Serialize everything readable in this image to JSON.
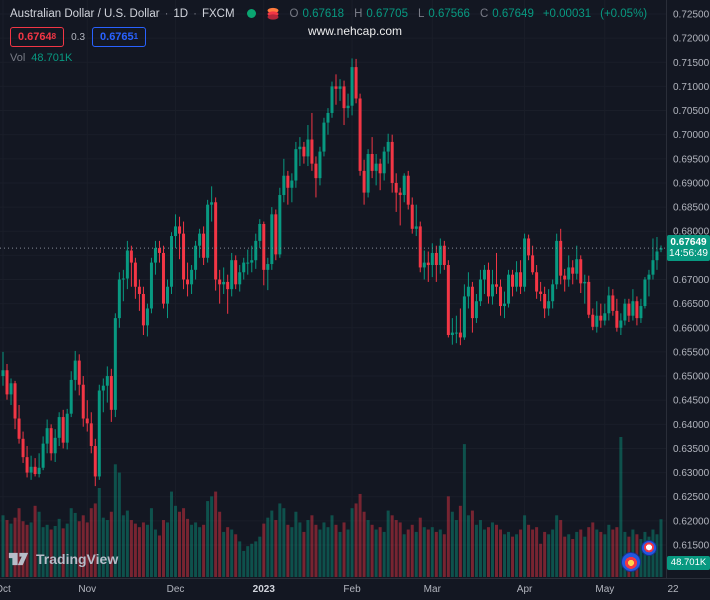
{
  "header": {
    "symbol_title": "Australian Dollar / U.S. Dollar",
    "separator": "·",
    "interval": "1D",
    "exchange": "FXCM",
    "ohlc": {
      "o_label": "O",
      "o": "0.67618",
      "h_label": "H",
      "h": "0.67705",
      "l_label": "L",
      "l": "0.67566",
      "c_label": "C",
      "c": "0.67649",
      "change": "+0.00031",
      "change_pct": "(+0.05%)"
    },
    "sell_price": "0.6764",
    "sell_sup": "8",
    "spread": "0.3",
    "buy_price": "0.6765",
    "buy_sup": "1",
    "vol_label": "Vol",
    "vol_value": "48.701K"
  },
  "watermark": "www.nehcap.com",
  "footer_logo": "TradingView",
  "price_label": {
    "price": "0.67649",
    "countdown": "14:56:49"
  },
  "volume_axis_label": "48.701K",
  "colors": {
    "bg": "#131722",
    "up": "#089981",
    "down": "#f23645",
    "vol_up": "rgba(8,153,129,0.45)",
    "vol_down": "rgba(242,54,69,0.45)",
    "sell": "#f23645",
    "buy": "#2962ff",
    "axis_text": "#b2b5be",
    "muted": "#787b86",
    "label_text": "#d1d4dc",
    "grid": "#1a1e29",
    "price_line": "#868b97",
    "flag_bg": "#089981"
  },
  "chart_data": {
    "type": "candlestick",
    "title": "Australian Dollar / U.S. Dollar",
    "symbol": "AUD/USD",
    "interval": "1D",
    "exchange": "FXCM",
    "last_price": 0.67649,
    "y_axis": {
      "min": 0.615,
      "max": 0.725,
      "tick_step": 0.005,
      "tick_decimals": 5
    },
    "x_axis_labels": [
      {
        "label": "Oct",
        "index": 0
      },
      {
        "label": "Nov",
        "index": 21
      },
      {
        "label": "Dec",
        "index": 43
      },
      {
        "label": "2023",
        "index": 65,
        "emphasis": true
      },
      {
        "label": "Feb",
        "index": 87
      },
      {
        "label": "Mar",
        "index": 107
      },
      {
        "label": "Apr",
        "index": 130
      },
      {
        "label": "May",
        "index": 150
      },
      {
        "label": "22",
        "index": 167
      }
    ],
    "candle_fields": [
      "open",
      "high",
      "low",
      "close",
      "volume_k"
    ],
    "candles": [
      [
        0.65,
        0.655,
        0.648,
        0.6512,
        52
      ],
      [
        0.6512,
        0.6525,
        0.6451,
        0.6462,
        48
      ],
      [
        0.6462,
        0.6495,
        0.644,
        0.6485,
        45
      ],
      [
        0.6485,
        0.649,
        0.639,
        0.6412,
        50
      ],
      [
        0.6412,
        0.644,
        0.636,
        0.637,
        58
      ],
      [
        0.637,
        0.6385,
        0.632,
        0.6332,
        47
      ],
      [
        0.6332,
        0.6355,
        0.629,
        0.63,
        44
      ],
      [
        0.63,
        0.6335,
        0.6285,
        0.6312,
        46
      ],
      [
        0.6312,
        0.633,
        0.6292,
        0.6297,
        60
      ],
      [
        0.6297,
        0.634,
        0.629,
        0.631,
        55
      ],
      [
        0.631,
        0.6375,
        0.6305,
        0.636,
        42
      ],
      [
        0.636,
        0.641,
        0.634,
        0.6392,
        44
      ],
      [
        0.6392,
        0.64,
        0.6325,
        0.634,
        40
      ],
      [
        0.634,
        0.639,
        0.6322,
        0.6372,
        43
      ],
      [
        0.6372,
        0.6425,
        0.6355,
        0.6415,
        49
      ],
      [
        0.6415,
        0.643,
        0.635,
        0.6362,
        41
      ],
      [
        0.6362,
        0.6432,
        0.6348,
        0.6422,
        45
      ],
      [
        0.6422,
        0.651,
        0.6415,
        0.6492,
        58
      ],
      [
        0.6492,
        0.6552,
        0.647,
        0.6532,
        54
      ],
      [
        0.6532,
        0.6545,
        0.646,
        0.6482,
        47
      ],
      [
        0.6482,
        0.65,
        0.6395,
        0.6412,
        52
      ],
      [
        0.6412,
        0.645,
        0.6385,
        0.6402,
        46
      ],
      [
        0.6402,
        0.6425,
        0.634,
        0.6355,
        58
      ],
      [
        0.6355,
        0.637,
        0.6272,
        0.6292,
        62
      ],
      [
        0.6292,
        0.6482,
        0.6285,
        0.647,
        75
      ],
      [
        0.647,
        0.6495,
        0.6425,
        0.648,
        50
      ],
      [
        0.648,
        0.652,
        0.6445,
        0.65,
        48
      ],
      [
        0.65,
        0.6515,
        0.6405,
        0.643,
        55
      ],
      [
        0.643,
        0.663,
        0.6415,
        0.662,
        95
      ],
      [
        0.662,
        0.6715,
        0.66,
        0.67,
        88
      ],
      [
        0.67,
        0.672,
        0.6655,
        0.6702,
        52
      ],
      [
        0.6702,
        0.678,
        0.668,
        0.676,
        56
      ],
      [
        0.676,
        0.677,
        0.6685,
        0.6735,
        48
      ],
      [
        0.6735,
        0.6745,
        0.666,
        0.6685,
        45
      ],
      [
        0.6685,
        0.67,
        0.6635,
        0.667,
        42
      ],
      [
        0.667,
        0.6685,
        0.6585,
        0.6605,
        46
      ],
      [
        0.6605,
        0.665,
        0.6582,
        0.664,
        44
      ],
      [
        0.664,
        0.6745,
        0.663,
        0.6735,
        58
      ],
      [
        0.6735,
        0.678,
        0.671,
        0.6765,
        40
      ],
      [
        0.6765,
        0.678,
        0.6735,
        0.6755,
        35
      ],
      [
        0.6755,
        0.677,
        0.664,
        0.665,
        48
      ],
      [
        0.665,
        0.67,
        0.662,
        0.6685,
        46
      ],
      [
        0.6685,
        0.6798,
        0.667,
        0.679,
        72
      ],
      [
        0.679,
        0.6835,
        0.6765,
        0.681,
        60
      ],
      [
        0.681,
        0.683,
        0.6742,
        0.6795,
        55
      ],
      [
        0.6795,
        0.682,
        0.668,
        0.67,
        58
      ],
      [
        0.67,
        0.6735,
        0.6665,
        0.669,
        49
      ],
      [
        0.669,
        0.673,
        0.667,
        0.672,
        44
      ],
      [
        0.672,
        0.678,
        0.67,
        0.677,
        46
      ],
      [
        0.677,
        0.6805,
        0.6745,
        0.6795,
        42
      ],
      [
        0.6795,
        0.681,
        0.673,
        0.6745,
        44
      ],
      [
        0.6745,
        0.6865,
        0.6735,
        0.6855,
        64
      ],
      [
        0.6855,
        0.6893,
        0.682,
        0.686,
        68
      ],
      [
        0.686,
        0.687,
        0.6677,
        0.67,
        72
      ],
      [
        0.67,
        0.672,
        0.665,
        0.669,
        55
      ],
      [
        0.669,
        0.6725,
        0.667,
        0.6695,
        38
      ],
      [
        0.6695,
        0.671,
        0.6629,
        0.668,
        42
      ],
      [
        0.668,
        0.6755,
        0.6665,
        0.674,
        40
      ],
      [
        0.674,
        0.675,
        0.668,
        0.669,
        36
      ],
      [
        0.669,
        0.673,
        0.6675,
        0.6715,
        30
      ],
      [
        0.6715,
        0.6745,
        0.67,
        0.6735,
        22
      ],
      [
        0.6735,
        0.6762,
        0.671,
        0.6735,
        26
      ],
      [
        0.6735,
        0.677,
        0.6715,
        0.674,
        28
      ],
      [
        0.674,
        0.6795,
        0.6722,
        0.678,
        30
      ],
      [
        0.678,
        0.6825,
        0.6765,
        0.6815,
        34
      ],
      [
        0.6815,
        0.682,
        0.6688,
        0.672,
        45
      ],
      [
        0.672,
        0.6745,
        0.6678,
        0.6732,
        50
      ],
      [
        0.6732,
        0.685,
        0.672,
        0.6835,
        56
      ],
      [
        0.6835,
        0.6845,
        0.674,
        0.6752,
        48
      ],
      [
        0.6752,
        0.689,
        0.6745,
        0.6875,
        62
      ],
      [
        0.6875,
        0.695,
        0.686,
        0.6915,
        58
      ],
      [
        0.6915,
        0.6925,
        0.6855,
        0.689,
        44
      ],
      [
        0.689,
        0.692,
        0.686,
        0.6905,
        42
      ],
      [
        0.6905,
        0.6985,
        0.689,
        0.697,
        55
      ],
      [
        0.697,
        0.6995,
        0.6935,
        0.6975,
        46
      ],
      [
        0.6975,
        0.6985,
        0.694,
        0.6955,
        38
      ],
      [
        0.6955,
        0.702,
        0.6935,
        0.699,
        48
      ],
      [
        0.699,
        0.7045,
        0.6925,
        0.694,
        52
      ],
      [
        0.694,
        0.6955,
        0.687,
        0.691,
        44
      ],
      [
        0.691,
        0.6975,
        0.6895,
        0.6965,
        40
      ],
      [
        0.6965,
        0.7035,
        0.6955,
        0.7025,
        46
      ],
      [
        0.7025,
        0.7055,
        0.7,
        0.7045,
        42
      ],
      [
        0.7045,
        0.711,
        0.7035,
        0.71,
        52
      ],
      [
        0.71,
        0.7125,
        0.7062,
        0.7095,
        44
      ],
      [
        0.7095,
        0.7115,
        0.707,
        0.71,
        38
      ],
      [
        0.71,
        0.7112,
        0.702,
        0.7055,
        46
      ],
      [
        0.7055,
        0.7085,
        0.7035,
        0.706,
        40
      ],
      [
        0.706,
        0.7158,
        0.704,
        0.714,
        58
      ],
      [
        0.714,
        0.7157,
        0.7065,
        0.7075,
        62
      ],
      [
        0.7075,
        0.7085,
        0.6915,
        0.6925,
        70
      ],
      [
        0.6925,
        0.6948,
        0.6855,
        0.688,
        55
      ],
      [
        0.688,
        0.697,
        0.687,
        0.696,
        48
      ],
      [
        0.696,
        0.6995,
        0.691,
        0.6925,
        44
      ],
      [
        0.6925,
        0.696,
        0.6895,
        0.694,
        40
      ],
      [
        0.694,
        0.695,
        0.6885,
        0.692,
        42
      ],
      [
        0.692,
        0.6975,
        0.6905,
        0.6965,
        38
      ],
      [
        0.6965,
        0.7002,
        0.694,
        0.6985,
        56
      ],
      [
        0.6985,
        0.7,
        0.688,
        0.69,
        52
      ],
      [
        0.69,
        0.692,
        0.684,
        0.688,
        48
      ],
      [
        0.688,
        0.689,
        0.6812,
        0.6875,
        46
      ],
      [
        0.6875,
        0.692,
        0.686,
        0.6915,
        36
      ],
      [
        0.6915,
        0.6925,
        0.6845,
        0.6855,
        40
      ],
      [
        0.6855,
        0.687,
        0.6795,
        0.6805,
        44
      ],
      [
        0.6805,
        0.6855,
        0.679,
        0.681,
        38
      ],
      [
        0.681,
        0.682,
        0.6715,
        0.6725,
        50
      ],
      [
        0.6725,
        0.676,
        0.67,
        0.6735,
        42
      ],
      [
        0.6735,
        0.6758,
        0.6695,
        0.673,
        40
      ],
      [
        0.673,
        0.6775,
        0.6705,
        0.6755,
        42
      ],
      [
        0.6755,
        0.677,
        0.6695,
        0.673,
        38
      ],
      [
        0.673,
        0.6785,
        0.6712,
        0.677,
        40
      ],
      [
        0.677,
        0.678,
        0.672,
        0.673,
        36
      ],
      [
        0.673,
        0.674,
        0.658,
        0.6585,
        68
      ],
      [
        0.6585,
        0.662,
        0.6565,
        0.659,
        55
      ],
      [
        0.659,
        0.6625,
        0.6568,
        0.659,
        48
      ],
      [
        0.659,
        0.664,
        0.6564,
        0.658,
        60
      ],
      [
        0.658,
        0.669,
        0.6575,
        0.6665,
        112
      ],
      [
        0.6665,
        0.6715,
        0.664,
        0.6685,
        52
      ],
      [
        0.6685,
        0.6695,
        0.659,
        0.662,
        56
      ],
      [
        0.662,
        0.667,
        0.661,
        0.6655,
        44
      ],
      [
        0.6655,
        0.672,
        0.6645,
        0.67,
        48
      ],
      [
        0.67,
        0.673,
        0.667,
        0.672,
        40
      ],
      [
        0.672,
        0.6735,
        0.665,
        0.6665,
        42
      ],
      [
        0.6665,
        0.672,
        0.6648,
        0.669,
        46
      ],
      [
        0.669,
        0.6755,
        0.667,
        0.6685,
        44
      ],
      [
        0.6685,
        0.67,
        0.6625,
        0.6645,
        40
      ],
      [
        0.6645,
        0.6675,
        0.662,
        0.665,
        36
      ],
      [
        0.665,
        0.672,
        0.6642,
        0.671,
        38
      ],
      [
        0.671,
        0.672,
        0.6665,
        0.6685,
        34
      ],
      [
        0.6685,
        0.6738,
        0.6675,
        0.6715,
        36
      ],
      [
        0.6715,
        0.674,
        0.667,
        0.6685,
        40
      ],
      [
        0.6685,
        0.6795,
        0.6675,
        0.6785,
        52
      ],
      [
        0.6785,
        0.6793,
        0.674,
        0.675,
        44
      ],
      [
        0.675,
        0.677,
        0.671,
        0.6715,
        40
      ],
      [
        0.6715,
        0.673,
        0.666,
        0.6675,
        42
      ],
      [
        0.6675,
        0.6695,
        0.6655,
        0.667,
        28
      ],
      [
        0.667,
        0.6685,
        0.662,
        0.664,
        38
      ],
      [
        0.664,
        0.668,
        0.6625,
        0.6655,
        36
      ],
      [
        0.6655,
        0.67,
        0.664,
        0.669,
        40
      ],
      [
        0.669,
        0.6795,
        0.668,
        0.678,
        52
      ],
      [
        0.678,
        0.6805,
        0.669,
        0.6708,
        48
      ],
      [
        0.6708,
        0.6722,
        0.6675,
        0.67,
        34
      ],
      [
        0.67,
        0.675,
        0.6685,
        0.6725,
        36
      ],
      [
        0.6725,
        0.674,
        0.669,
        0.6712,
        32
      ],
      [
        0.6712,
        0.677,
        0.67,
        0.6742,
        38
      ],
      [
        0.6742,
        0.675,
        0.6672,
        0.6692,
        40
      ],
      [
        0.6692,
        0.671,
        0.665,
        0.6695,
        34
      ],
      [
        0.6695,
        0.6708,
        0.662,
        0.6627,
        42
      ],
      [
        0.6627,
        0.664,
        0.6595,
        0.6602,
        46
      ],
      [
        0.6602,
        0.6655,
        0.659,
        0.6625,
        40
      ],
      [
        0.6625,
        0.665,
        0.66,
        0.6615,
        38
      ],
      [
        0.6615,
        0.665,
        0.6605,
        0.663,
        36
      ],
      [
        0.663,
        0.6685,
        0.6615,
        0.6667,
        44
      ],
      [
        0.6667,
        0.668,
        0.6625,
        0.6635,
        40
      ],
      [
        0.6635,
        0.666,
        0.6592,
        0.66,
        42
      ],
      [
        0.66,
        0.663,
        0.6585,
        0.6615,
        118
      ],
      [
        0.6615,
        0.666,
        0.6605,
        0.665,
        38
      ],
      [
        0.665,
        0.666,
        0.6612,
        0.6625,
        34
      ],
      [
        0.6625,
        0.668,
        0.6615,
        0.6655,
        40
      ],
      [
        0.6655,
        0.6665,
        0.6605,
        0.662,
        36
      ],
      [
        0.662,
        0.666,
        0.661,
        0.6645,
        32
      ],
      [
        0.6645,
        0.6705,
        0.664,
        0.67,
        38
      ],
      [
        0.67,
        0.672,
        0.6665,
        0.671,
        34
      ],
      [
        0.671,
        0.6785,
        0.67,
        0.674,
        40
      ],
      [
        0.674,
        0.6788,
        0.672,
        0.6758,
        36
      ],
      [
        0.67618,
        0.67705,
        0.67566,
        0.67649,
        48.701
      ]
    ]
  }
}
